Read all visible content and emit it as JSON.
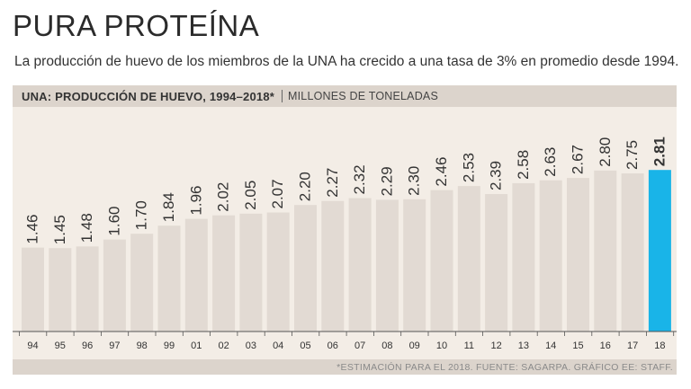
{
  "header": {
    "title": "PURA PROTEÍNA",
    "subtitle": "La producción de huevo de los miembros de la UNA ha crecido a una tasa de 3% en promedio desde 1994."
  },
  "chart_header": {
    "title": "UNA: PRODUCCIÓN DE HUEVO, 1994–2018*",
    "units": "MILLONES DE TONELADAS"
  },
  "source": "*ESTIMACIÓN PARA EL 2018.  FUENTE: SAGARPA.  GRÁFICO EE: STAFF.",
  "colors": {
    "bar": "#e2dad3",
    "highlight": "#19b4e8",
    "text": "#333333",
    "axis": "#555555"
  },
  "chart_data": {
    "type": "bar",
    "title": "UNA: PRODUCCIÓN DE HUEVO, 1994–2018*",
    "xlabel": "",
    "ylabel": "MILLONES DE TONELADAS",
    "categories": [
      "94",
      "95",
      "96",
      "97",
      "98",
      "99",
      "01",
      "02",
      "03",
      "04",
      "05",
      "06",
      "07",
      "08",
      "09",
      "10",
      "11",
      "12",
      "13",
      "14",
      "15",
      "16",
      "17",
      "18"
    ],
    "values": [
      1.46,
      1.45,
      1.48,
      1.6,
      1.7,
      1.84,
      1.96,
      2.02,
      2.05,
      2.07,
      2.2,
      2.27,
      2.32,
      2.29,
      2.3,
      2.46,
      2.53,
      2.39,
      2.58,
      2.63,
      2.67,
      2.8,
      2.75,
      2.81
    ],
    "labels": [
      "1.46",
      "1.45",
      "1.48",
      "1.60",
      "1.70",
      "1.84",
      "1.96",
      "2.02",
      "2.05",
      "2.07",
      "2.20",
      "2.27",
      "2.32",
      "2.29",
      "2.30",
      "2.46",
      "2.53",
      "2.39",
      "2.58",
      "2.63",
      "2.67",
      "2.80",
      "2.75",
      "2.81"
    ],
    "highlight_index": 23,
    "ylim": [
      0,
      3.0
    ],
    "grid": false,
    "legend": "none"
  }
}
